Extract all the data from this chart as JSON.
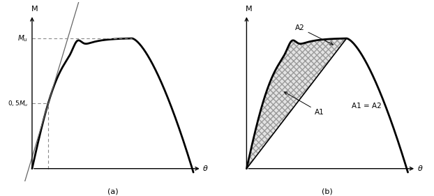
{
  "fig_width": 6.22,
  "fig_height": 2.81,
  "dpi": 100,
  "background_color": "#ffffff",
  "panel_a": {
    "label": "(a)",
    "xlabel": "θ",
    "ylabel": "M",
    "mu_label": "Mu",
    "half_mu_label": "0,5Mu",
    "curve_color": "#000000",
    "tangent_color": "#666666",
    "dashed_color": "#888888",
    "curve_lw": 2.0,
    "tangent_lw": 0.9
  },
  "panel_b": {
    "label": "(b)",
    "xlabel": "θ",
    "ylabel": "M",
    "a1_label": "A1",
    "a2_label": "A2",
    "eq_label": "A1 = A2",
    "curve_color": "#000000",
    "line_color": "#000000",
    "area1_hatch": "////",
    "area2_hatch": "xxxx",
    "area_facecolor": "#dddddd",
    "area_edgecolor": "#888888",
    "curve_lw": 2.0
  }
}
